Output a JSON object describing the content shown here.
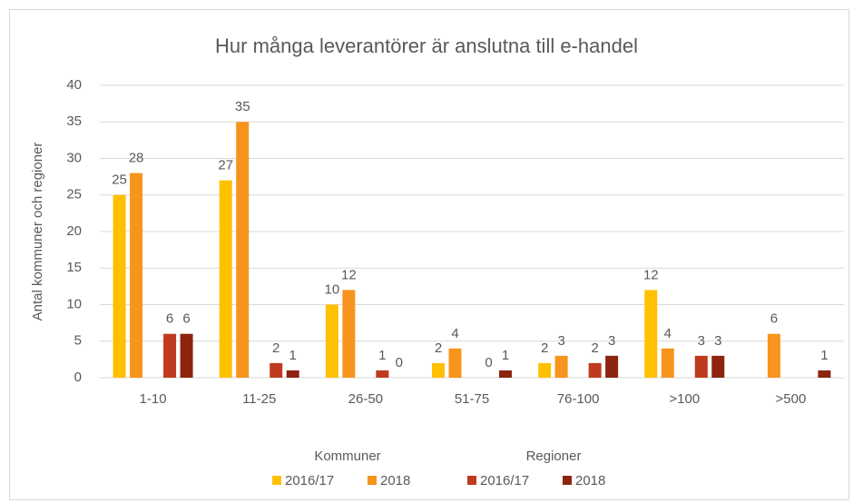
{
  "chart_data": {
    "type": "bar",
    "title": "Hur många leverantörer är anslutna till e-handel",
    "ylabel": "Antal kommuner och regioner",
    "categories": [
      "1-10",
      "11-25",
      "26-50",
      "51-75",
      "76-100",
      ">100",
      ">500"
    ],
    "legend_groups": [
      "Kommuner",
      "Regioner"
    ],
    "series": [
      {
        "name": "2016/17",
        "color": "#ffc000",
        "values": [
          25,
          27,
          10,
          2,
          2,
          12,
          null
        ]
      },
      {
        "name": "2018",
        "color": "#f7941d",
        "values": [
          28,
          35,
          12,
          4,
          3,
          4,
          6
        ]
      },
      {
        "name": "2016/17",
        "color": "#bf3a1e",
        "values": [
          6,
          2,
          1,
          0,
          2,
          3,
          null
        ]
      },
      {
        "name": "2018",
        "color": "#8c2410",
        "values": [
          6,
          1,
          0,
          1,
          3,
          3,
          1
        ]
      }
    ],
    "ylim": [
      0,
      40
    ],
    "yticks": [
      0,
      5,
      10,
      15,
      20,
      25,
      30,
      35,
      40
    ],
    "grid": true
  }
}
